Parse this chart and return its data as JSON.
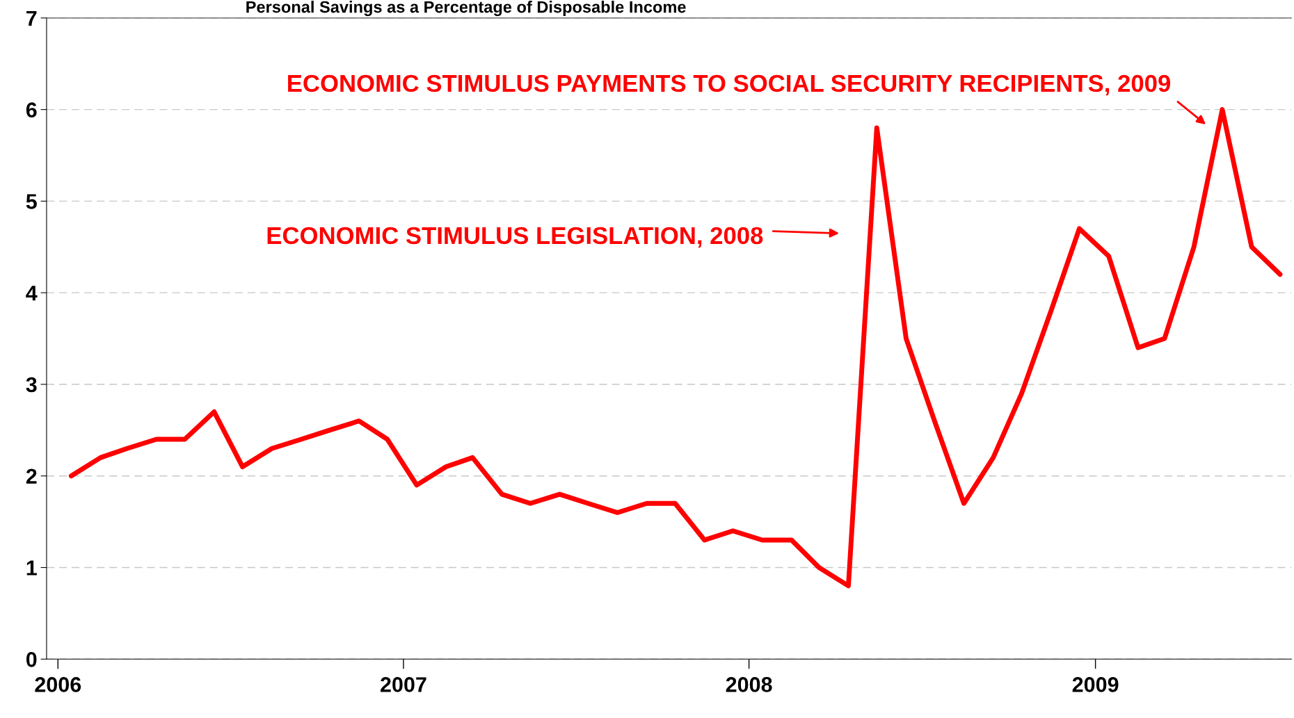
{
  "chart_data": {
    "type": "line",
    "title": "Personal Savings as a Percentage of Disposable Income",
    "x": [
      "2006-01-15",
      "2006-02-15",
      "2006-03-15",
      "2006-04-15",
      "2006-05-15",
      "2006-06-15",
      "2006-07-15",
      "2006-08-15",
      "2006-09-15",
      "2006-10-15",
      "2006-11-15",
      "2006-12-15",
      "2007-01-15",
      "2007-02-15",
      "2007-03-15",
      "2007-04-15",
      "2007-05-15",
      "2007-06-15",
      "2007-07-15",
      "2007-08-15",
      "2007-09-15",
      "2007-10-15",
      "2007-11-15",
      "2007-12-15",
      "2008-01-15",
      "2008-02-15",
      "2008-03-15",
      "2008-04-15",
      "2008-05-15",
      "2008-06-15",
      "2008-07-15",
      "2008-08-15",
      "2008-09-15",
      "2008-10-15",
      "2008-11-15",
      "2008-12-15",
      "2009-01-15",
      "2009-02-15",
      "2009-03-15",
      "2009-04-15",
      "2009-05-15",
      "2009-06-15",
      "2009-07-15"
    ],
    "series": [
      {
        "color": "#ff0000",
        "values": [
          2.0,
          2.2,
          2.3,
          2.4,
          2.4,
          2.7,
          2.1,
          2.3,
          2.4,
          2.5,
          2.6,
          2.4,
          1.9,
          2.1,
          2.2,
          1.8,
          1.7,
          1.8,
          1.7,
          1.6,
          1.7,
          1.7,
          1.3,
          1.4,
          1.3,
          1.3,
          1.0,
          0.8,
          5.8,
          3.5,
          2.6,
          1.7,
          2.2,
          2.9,
          3.8,
          4.7,
          4.4,
          3.4,
          3.5,
          4.5,
          6.0,
          4.5,
          4.2
        ]
      }
    ],
    "xlim": [
      "2005-12-20",
      "2009-07-27"
    ],
    "xticks": [
      {
        "value": "2006-01-01",
        "label": "2006"
      },
      {
        "value": "2007-01-01",
        "label": "2007"
      },
      {
        "value": "2008-01-01",
        "label": "2008"
      },
      {
        "value": "2009-01-01",
        "label": "2009"
      }
    ],
    "ylim": [
      0,
      7
    ],
    "yticks": [
      0,
      1,
      2,
      3,
      4,
      5,
      6,
      7
    ],
    "grid": "y",
    "legend": false,
    "marker": "none",
    "line_style": "solid",
    "annotations": [
      "ECONOMIC STIMULUS LEGISLATION, 2008",
      "ECONOMIC STIMULUS PAYMENTS TO SOCIAL SECURITY RECIPIENTS, 2009"
    ]
  }
}
